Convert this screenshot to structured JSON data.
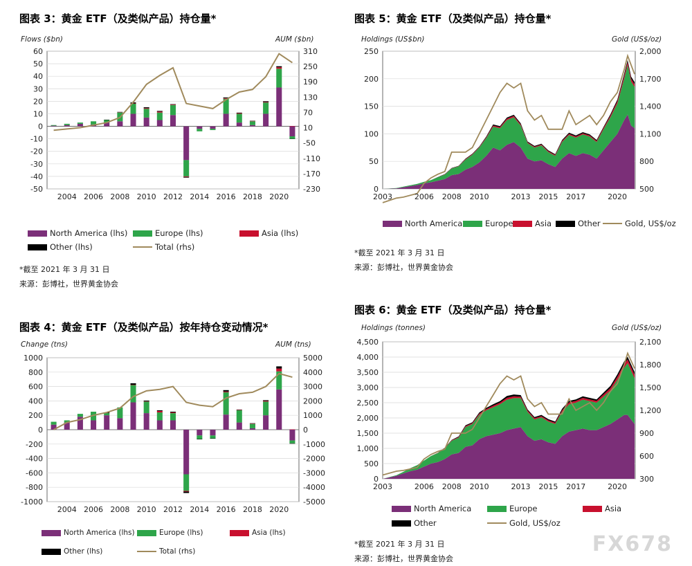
{
  "colors": {
    "north_america": "#7b2f78",
    "europe": "#2ea54a",
    "asia": "#c8102e",
    "other": "#000000",
    "total": "#a08a5c"
  },
  "watermark": "FX678",
  "chart_data": [
    {
      "id": "fig3",
      "type": "bar",
      "title": "图表 3：黄金 ETF（及类似产品）持仓量*",
      "ylabel_left": "Flows ($bn)",
      "ylabel_right": "AUM ($bn)",
      "ylim": [
        -50,
        60
      ],
      "yticks": [
        -50,
        -40,
        -30,
        -20,
        -10,
        0,
        10,
        20,
        30,
        40,
        50,
        60
      ],
      "ylim_right": [
        -230,
        310
      ],
      "yticks_right": [
        -230,
        -170,
        -110,
        -50,
        10,
        70,
        130,
        190,
        250,
        310
      ],
      "x_ticks": [
        "2004",
        "2006",
        "2008",
        "2010",
        "2012",
        "2014",
        "2016",
        "2018",
        "2020"
      ],
      "categories": [
        "2003",
        "2004",
        "2005",
        "2006",
        "2007",
        "2008",
        "2009",
        "2010",
        "2011",
        "2012",
        "2013",
        "2014",
        "2015",
        "2016",
        "2017",
        "2018",
        "2019",
        "2020",
        "2021"
      ],
      "series": [
        {
          "name": "North America (lhs)",
          "key": "north_america",
          "values": [
            0.5,
            1,
            2,
            1.5,
            3,
            4,
            10,
            7,
            5,
            9,
            -27,
            -2,
            -2,
            10,
            3,
            1,
            10,
            31,
            -8
          ]
        },
        {
          "name": "Europe (lhs)",
          "key": "europe",
          "values": [
            0.5,
            1,
            1,
            2.5,
            2,
            7,
            8,
            7,
            6,
            8,
            -13,
            -2,
            -1,
            12,
            7,
            3,
            9,
            15,
            -2
          ]
        },
        {
          "name": "Asia (lhs)",
          "key": "asia",
          "values": [
            0,
            0,
            0,
            0,
            0,
            0.2,
            0.3,
            0.5,
            0.8,
            0.4,
            -0.5,
            0,
            0,
            0.5,
            0.5,
            0.3,
            0.4,
            1.2,
            0.3
          ]
        },
        {
          "name": "Other (lhs)",
          "key": "other",
          "values": [
            0,
            0,
            0,
            0,
            0.3,
            0.3,
            0.8,
            0.7,
            0.5,
            0.3,
            -0.5,
            0,
            0,
            0.6,
            0.4,
            0.2,
            0.6,
            0.8,
            -0.2
          ]
        }
      ],
      "total_series": {
        "name": "Total (rhs)",
        "key": "total",
        "values": [
          0,
          5,
          10,
          20,
          30,
          50,
          110,
          180,
          215,
          245,
          105,
          95,
          85,
          120,
          150,
          160,
          210,
          300,
          265
        ]
      }
    },
    {
      "id": "fig4",
      "type": "bar",
      "title": "图表 4：黄金 ETF（及类似产品）按年持仓变动情况*",
      "ylabel_left": "Change (tns)",
      "ylabel_right": "AUM (tns)",
      "ylim": [
        -1000,
        1000
      ],
      "yticks": [
        -1000,
        -800,
        -600,
        -400,
        -200,
        0,
        200,
        400,
        600,
        800,
        1000
      ],
      "ylim_right": [
        -5000,
        5000
      ],
      "yticks_right": [
        -5000,
        -4000,
        -3000,
        -2000,
        -1000,
        0,
        1000,
        2000,
        3000,
        4000,
        5000
      ],
      "x_ticks": [
        "2004",
        "2006",
        "2008",
        "2010",
        "2012",
        "2014",
        "2016",
        "2018",
        "2020"
      ],
      "categories": [
        "2003",
        "2004",
        "2005",
        "2006",
        "2007",
        "2008",
        "2009",
        "2010",
        "2011",
        "2012",
        "2013",
        "2014",
        "2015",
        "2016",
        "2017",
        "2018",
        "2019",
        "2020",
        "2021"
      ],
      "series": [
        {
          "name": "North America (lhs)",
          "key": "north_america",
          "values": [
            70,
            100,
            180,
            130,
            200,
            160,
            380,
            230,
            130,
            130,
            -620,
            -80,
            -80,
            210,
            100,
            20,
            200,
            560,
            -150
          ]
        },
        {
          "name": "Europe (lhs)",
          "key": "europe",
          "values": [
            40,
            30,
            40,
            120,
            30,
            150,
            240,
            160,
            110,
            100,
            -230,
            -50,
            -40,
            310,
            170,
            60,
            190,
            250,
            -40
          ]
        },
        {
          "name": "Asia (lhs)",
          "key": "asia",
          "values": [
            0,
            0,
            0,
            0,
            0,
            0,
            5,
            5,
            20,
            10,
            -10,
            0,
            0,
            10,
            5,
            5,
            10,
            40,
            5
          ]
        },
        {
          "name": "Other (lhs)",
          "key": "other",
          "values": [
            0,
            0,
            0,
            0,
            10,
            0,
            20,
            10,
            10,
            10,
            -20,
            -5,
            -5,
            20,
            5,
            5,
            10,
            30,
            -5
          ]
        }
      ],
      "total_series": {
        "name": "Total (rhs)",
        "key": "total",
        "values": [
          0,
          500,
          700,
          1000,
          1200,
          1500,
          2300,
          2700,
          2800,
          3000,
          1900,
          1700,
          1600,
          2200,
          2500,
          2600,
          3000,
          3900,
          3650
        ]
      }
    },
    {
      "id": "fig5",
      "type": "area",
      "title": "图表 5：黄金 ETF（及类似产品）持仓量*",
      "ylabel_left": "Holdings (US$bn)",
      "ylabel_right": "Gold (US$/oz)",
      "ylim": [
        0,
        250
      ],
      "yticks": [
        0,
        50,
        100,
        150,
        200,
        250
      ],
      "ylim_right": [
        500,
        2000
      ],
      "yticks_right": [
        "500",
        "800",
        "1,100",
        "1,400",
        "1,700",
        "2,000"
      ],
      "xlim": [
        2003,
        2021.3
      ],
      "x_ticks": [
        "2003",
        "2006",
        "2008",
        "2010",
        "2013",
        "2015",
        "2017",
        "2020"
      ],
      "x": [
        2003.0,
        2004.0,
        2004.5,
        2005.0,
        2005.5,
        2006.0,
        2006.5,
        2007.0,
        2007.5,
        2008.0,
        2008.5,
        2009.0,
        2009.5,
        2010.0,
        2010.5,
        2011.0,
        2011.5,
        2012.0,
        2012.5,
        2013.0,
        2013.5,
        2014.0,
        2014.5,
        2015.0,
        2015.5,
        2016.0,
        2016.5,
        2017.0,
        2017.5,
        2018.0,
        2018.5,
        2019.0,
        2019.5,
        2020.0,
        2020.5,
        2020.75,
        2021.0,
        2021.25
      ],
      "series": [
        {
          "name": "North America",
          "key": "north_america",
          "values": [
            0,
            1,
            3,
            5,
            7,
            10,
            12,
            15,
            18,
            25,
            27,
            35,
            40,
            48,
            60,
            75,
            70,
            80,
            85,
            75,
            55,
            50,
            52,
            45,
            40,
            55,
            65,
            60,
            65,
            62,
            55,
            70,
            85,
            100,
            125,
            135,
            115,
            110
          ]
        },
        {
          "name": "Europe",
          "key": "europe",
          "values": [
            0,
            0.5,
            1,
            1.5,
            2,
            3,
            4,
            6,
            8,
            12,
            14,
            18,
            22,
            27,
            32,
            38,
            40,
            45,
            45,
            40,
            28,
            25,
            27,
            22,
            20,
            30,
            33,
            33,
            34,
            33,
            30,
            38,
            45,
            55,
            75,
            90,
            80,
            75
          ]
        },
        {
          "name": "Asia",
          "key": "asia",
          "values": [
            0,
            0,
            0,
            0,
            0,
            0,
            0,
            0,
            0.5,
            0.5,
            0.5,
            1,
            1,
            1,
            1.5,
            2,
            2,
            2.5,
            2.5,
            2,
            1.5,
            1.5,
            1.5,
            1.5,
            1.5,
            2,
            2,
            2,
            2,
            2,
            2,
            2.5,
            3,
            4,
            5,
            5,
            5,
            5
          ]
        },
        {
          "name": "Other",
          "key": "other",
          "values": [
            0,
            0,
            0,
            0,
            0,
            0,
            0,
            0.5,
            0.5,
            0.5,
            0.5,
            1,
            1,
            1,
            1.5,
            2,
            2,
            2,
            2,
            2,
            1.5,
            1.5,
            1.5,
            1.5,
            1.5,
            2,
            2,
            2,
            2,
            2,
            2,
            2,
            2.5,
            3,
            4,
            4,
            4,
            4
          ]
        }
      ],
      "gold_series": {
        "name": "Gold, US$/oz",
        "key": "total",
        "values": [
          350,
          400,
          410,
          430,
          450,
          560,
          620,
          660,
          690,
          900,
          900,
          900,
          950,
          1100,
          1250,
          1400,
          1550,
          1650,
          1600,
          1650,
          1350,
          1250,
          1300,
          1150,
          1150,
          1150,
          1350,
          1200,
          1250,
          1300,
          1200,
          1300,
          1450,
          1550,
          1800,
          1950,
          1850,
          1750
        ]
      }
    },
    {
      "id": "fig6",
      "type": "area",
      "title": "图表 6：黄金 ETF（及类似产品）持仓量*",
      "ylabel_left": "Holdings (tonnes)",
      "ylabel_right": "Gold (US$/oz)",
      "ylim": [
        0,
        4500
      ],
      "yticks": [
        "0",
        "500",
        "1,000",
        "1,500",
        "2,000",
        "2,500",
        "3,000",
        "3,500",
        "4,000",
        "4,500"
      ],
      "ylim_right": [
        300,
        2100
      ],
      "yticks_right": [
        "300",
        "600",
        "900",
        "1,200",
        "1,500",
        "1,800",
        "2,100"
      ],
      "xlim": [
        2003,
        2021.3
      ],
      "x_ticks": [
        "2003",
        "2006",
        "2008",
        "2010",
        "2013",
        "2015",
        "2017",
        "2020"
      ],
      "x": [
        2003.0,
        2004.0,
        2004.5,
        2005.0,
        2005.5,
        2006.0,
        2006.5,
        2007.0,
        2007.5,
        2008.0,
        2008.5,
        2009.0,
        2009.5,
        2010.0,
        2010.5,
        2011.0,
        2011.5,
        2012.0,
        2012.5,
        2013.0,
        2013.5,
        2014.0,
        2014.5,
        2015.0,
        2015.5,
        2016.0,
        2016.5,
        2017.0,
        2017.5,
        2018.0,
        2018.5,
        2019.0,
        2019.5,
        2020.0,
        2020.5,
        2020.75,
        2021.0,
        2021.25
      ],
      "series": [
        {
          "name": "North America",
          "key": "north_america",
          "values": [
            0,
            100,
            180,
            250,
            300,
            400,
            500,
            550,
            650,
            800,
            850,
            1050,
            1100,
            1300,
            1400,
            1450,
            1500,
            1600,
            1650,
            1700,
            1400,
            1250,
            1300,
            1200,
            1150,
            1400,
            1550,
            1600,
            1650,
            1600,
            1600,
            1700,
            1800,
            1950,
            2100,
            2100,
            1950,
            1800
          ]
        },
        {
          "name": "Europe",
          "key": "europe",
          "values": [
            0,
            20,
            50,
            100,
            150,
            200,
            250,
            300,
            350,
            450,
            500,
            650,
            700,
            800,
            850,
            900,
            950,
            1000,
            1000,
            950,
            800,
            700,
            720,
            680,
            650,
            800,
            900,
            900,
            950,
            950,
            900,
            1000,
            1100,
            1300,
            1550,
            1700,
            1600,
            1500
          ]
        },
        {
          "name": "Asia",
          "key": "asia",
          "values": [
            0,
            0,
            0,
            0,
            0,
            0,
            0,
            5,
            10,
            15,
            20,
            30,
            30,
            40,
            40,
            50,
            50,
            60,
            60,
            50,
            40,
            40,
            40,
            40,
            40,
            50,
            60,
            60,
            60,
            60,
            60,
            70,
            80,
            100,
            120,
            120,
            120,
            120
          ]
        },
        {
          "name": "Other",
          "key": "other",
          "values": [
            0,
            0,
            0,
            0,
            0,
            0,
            0,
            5,
            10,
            15,
            20,
            30,
            30,
            40,
            40,
            50,
            50,
            60,
            60,
            50,
            40,
            40,
            40,
            40,
            40,
            50,
            50,
            50,
            50,
            50,
            50,
            60,
            70,
            80,
            90,
            90,
            90,
            90
          ]
        }
      ],
      "gold_series": {
        "name": "Gold, US$/oz",
        "key": "total",
        "values": [
          350,
          400,
          410,
          430,
          450,
          560,
          620,
          660,
          690,
          900,
          900,
          900,
          950,
          1100,
          1250,
          1400,
          1550,
          1650,
          1600,
          1650,
          1350,
          1250,
          1300,
          1150,
          1150,
          1150,
          1350,
          1200,
          1250,
          1300,
          1200,
          1300,
          1450,
          1550,
          1800,
          1950,
          1850,
          1750
        ]
      }
    }
  ],
  "notes": {
    "fig3_date": "*截至 2021 年 3 月 31 日",
    "fig3_source": "来源：彭博社，世界黄金协会",
    "fig5_date": "*截至 2021 年 3 月 31 日",
    "fig5_source": "来源：彭博社，世界黄金协会",
    "fig6_date": "*截至 2021 年 3 月 31 日",
    "fig6_source": "来源：彭博社，世界黄金协会"
  }
}
